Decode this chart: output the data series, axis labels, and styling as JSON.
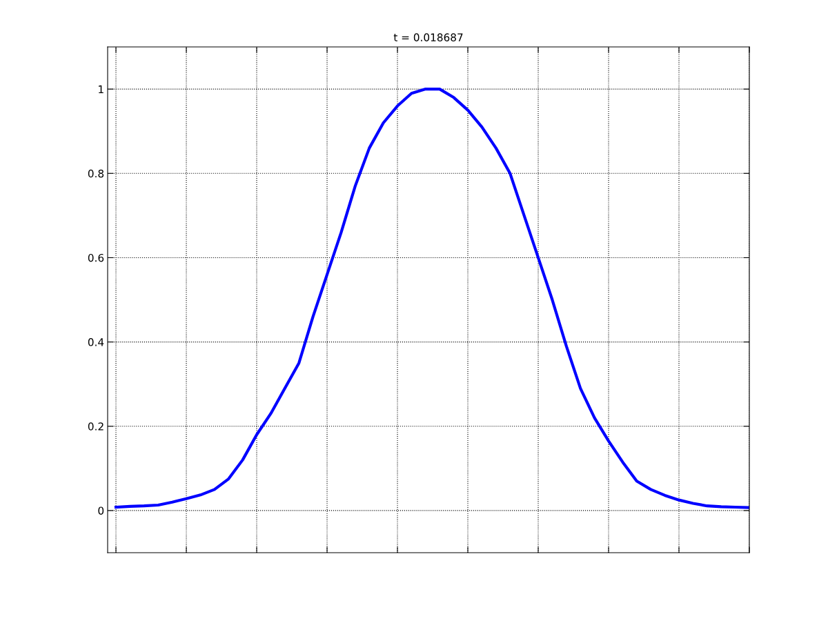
{
  "chart_data": {
    "type": "line",
    "title": "t = 0.018687",
    "categories": [
      null,
      null,
      null,
      null,
      null,
      null,
      null,
      null,
      null,
      null,
      null,
      null,
      null,
      null,
      null,
      null,
      null,
      null,
      null,
      null,
      null,
      null,
      null,
      null,
      null,
      null,
      null,
      null,
      null,
      null,
      null,
      null,
      null,
      null,
      null,
      null,
      null,
      null,
      null,
      null,
      null,
      null,
      null,
      null,
      null,
      null
    ],
    "series": [
      {
        "color": "#0000ff",
        "values": [
          0.008,
          0.01,
          0.011,
          0.013,
          0.02,
          0.028,
          0.037,
          0.05,
          0.075,
          0.12,
          0.18,
          0.23,
          0.29,
          0.35,
          0.46,
          0.56,
          0.66,
          0.77,
          0.86,
          0.92,
          0.96,
          0.99,
          1.0,
          1.0,
          0.98,
          0.95,
          0.91,
          0.86,
          0.8,
          0.7,
          0.6,
          0.5,
          0.39,
          0.29,
          0.22,
          0.165,
          0.115,
          0.07,
          0.05,
          0.036,
          0.025,
          0.017,
          0.011,
          0.009,
          0.008,
          0.007
        ]
      }
    ],
    "ylim": [
      -0.1,
      1.1
    ],
    "yticks": [
      0,
      0.2,
      0.4,
      0.6,
      0.8,
      1
    ],
    "tick_labels": "y",
    "grid": true,
    "marker": "none",
    "line_style": "solid"
  }
}
